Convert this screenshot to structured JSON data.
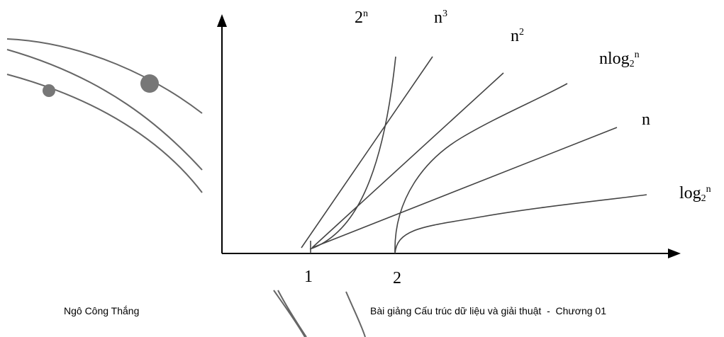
{
  "curves": [
    {
      "base": "2",
      "sup": "n"
    },
    {
      "base": "n",
      "sup": "3"
    },
    {
      "base": "n",
      "sup": "2"
    },
    {
      "base": "nlog",
      "sub": "2",
      "sup": "n"
    },
    {
      "base": "n"
    },
    {
      "base": "log",
      "sub": "2",
      "sup": "n"
    }
  ],
  "x_axis": {
    "ticks": [
      "1",
      "2"
    ]
  },
  "footer": {
    "author": "Ngô Công Thắng",
    "course": "Bài giảng Cấu trúc dữ liệu và giải thuật  -  Chương 01"
  }
}
